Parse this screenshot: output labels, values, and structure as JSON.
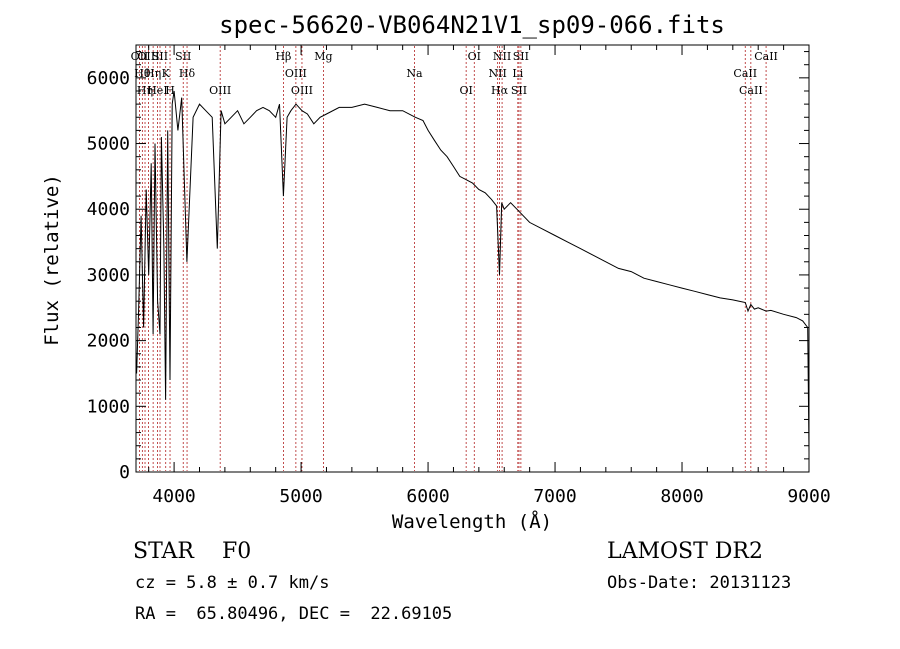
{
  "chart_data": {
    "type": "line",
    "title": "spec-56620-VB064N21V1_sp09-066.fits",
    "xlabel": "Wavelength (Å)",
    "ylabel": "Flux (relative)",
    "xlim": [
      3700,
      9000
    ],
    "ylim": [
      0,
      6500
    ],
    "xticks": [
      4000,
      5000,
      6000,
      7000,
      8000,
      9000
    ],
    "yticks": [
      0,
      1000,
      2000,
      3000,
      4000,
      5000,
      6000
    ],
    "grid": false,
    "series": [
      {
        "x": [
          3705,
          3720,
          3740,
          3760,
          3780,
          3800,
          3820,
          3835,
          3850,
          3870,
          3889,
          3900,
          3920,
          3933,
          3950,
          3968,
          3985,
          4000,
          4030,
          4060,
          4101,
          4150,
          4200,
          4250,
          4300,
          4340,
          4370,
          4400,
          4450,
          4500,
          4550,
          4600,
          4650,
          4700,
          4750,
          4800,
          4830,
          4861,
          4890,
          4920,
          4960,
          5007,
          5050,
          5100,
          5150,
          5200,
          5300,
          5400,
          5500,
          5600,
          5700,
          5800,
          5900,
          5960,
          6000,
          6050,
          6100,
          6150,
          6200,
          6250,
          6300,
          6350,
          6400,
          6450,
          6500,
          6540,
          6563,
          6580,
          6600,
          6650,
          6700,
          6750,
          6800,
          6900,
          7000,
          7100,
          7200,
          7300,
          7400,
          7500,
          7600,
          7700,
          7800,
          7900,
          8000,
          8100,
          8200,
          8300,
          8400,
          8450,
          8498,
          8520,
          8542,
          8570,
          8600,
          8662,
          8700,
          8800,
          8900,
          8950,
          8990,
          9000
        ],
        "y": [
          1500,
          2400,
          3900,
          2200,
          4300,
          3000,
          4700,
          2100,
          5000,
          2600,
          2100,
          5100,
          3400,
          1100,
          5200,
          1400,
          5600,
          5800,
          5200,
          5700,
          3200,
          5400,
          5600,
          5500,
          5400,
          3400,
          5500,
          5300,
          5400,
          5500,
          5300,
          5400,
          5500,
          5550,
          5500,
          5400,
          5600,
          4200,
          5400,
          5500,
          5600,
          5500,
          5450,
          5300,
          5400,
          5450,
          5550,
          5550,
          5600,
          5550,
          5500,
          5500,
          5400,
          5350,
          5200,
          5050,
          4900,
          4800,
          4650,
          4500,
          4450,
          4400,
          4300,
          4250,
          4150,
          4050,
          3000,
          4100,
          4000,
          4100,
          4000,
          3900,
          3800,
          3700,
          3600,
          3500,
          3400,
          3300,
          3200,
          3100,
          3050,
          2950,
          2900,
          2850,
          2800,
          2750,
          2700,
          2650,
          2620,
          2600,
          2580,
          2450,
          2550,
          2480,
          2500,
          2450,
          2460,
          2400,
          2350,
          2300,
          2200,
          300
        ]
      }
    ],
    "lines": [
      {
        "x": 3727,
        "label": "OII"
      },
      {
        "x": 3750,
        "label": "Hθ"
      },
      {
        "x": 3771,
        "label": "Hη"
      },
      {
        "x": 3798,
        "label": "OIII"
      },
      {
        "x": 3835,
        "label": "Hη"
      },
      {
        "x": 3869,
        "label": "HeI"
      },
      {
        "x": 3889,
        "label": "SII"
      },
      {
        "x": 3934,
        "label": "K"
      },
      {
        "x": 3968,
        "label": "H"
      },
      {
        "x": 4072,
        "label": "SII"
      },
      {
        "x": 4102,
        "label": "Hδ"
      },
      {
        "x": 4363,
        "label": "OIII"
      },
      {
        "x": 4861,
        "label": "Hβ"
      },
      {
        "x": 4959,
        "label": "OIII"
      },
      {
        "x": 5007,
        "label": "OIII"
      },
      {
        "x": 5176,
        "label": "Mg"
      },
      {
        "x": 5893,
        "label": "Na"
      },
      {
        "x": 6300,
        "label": "OI"
      },
      {
        "x": 6364,
        "label": "OI"
      },
      {
        "x": 6548,
        "label": "NII"
      },
      {
        "x": 6563,
        "label": "Hα"
      },
      {
        "x": 6583,
        "label": "NII"
      },
      {
        "x": 6707,
        "label": "Li"
      },
      {
        "x": 6716,
        "label": "SII"
      },
      {
        "x": 6731,
        "label": "SII"
      },
      {
        "x": 8498,
        "label": "CaII"
      },
      {
        "x": 8542,
        "label": "CaII"
      },
      {
        "x": 8662,
        "label": "CaII"
      }
    ]
  },
  "info": {
    "object": "STAR    F0",
    "cz": "cz = 5.8 ± 0.7 km/s",
    "coords": "RA =  65.80496, DEC =  22.69105",
    "survey": "LAMOST DR2",
    "obsdate": "Obs-Date: 20131123"
  },
  "colors": {
    "spectrum": "#000000",
    "line_markers": "#b22222"
  }
}
